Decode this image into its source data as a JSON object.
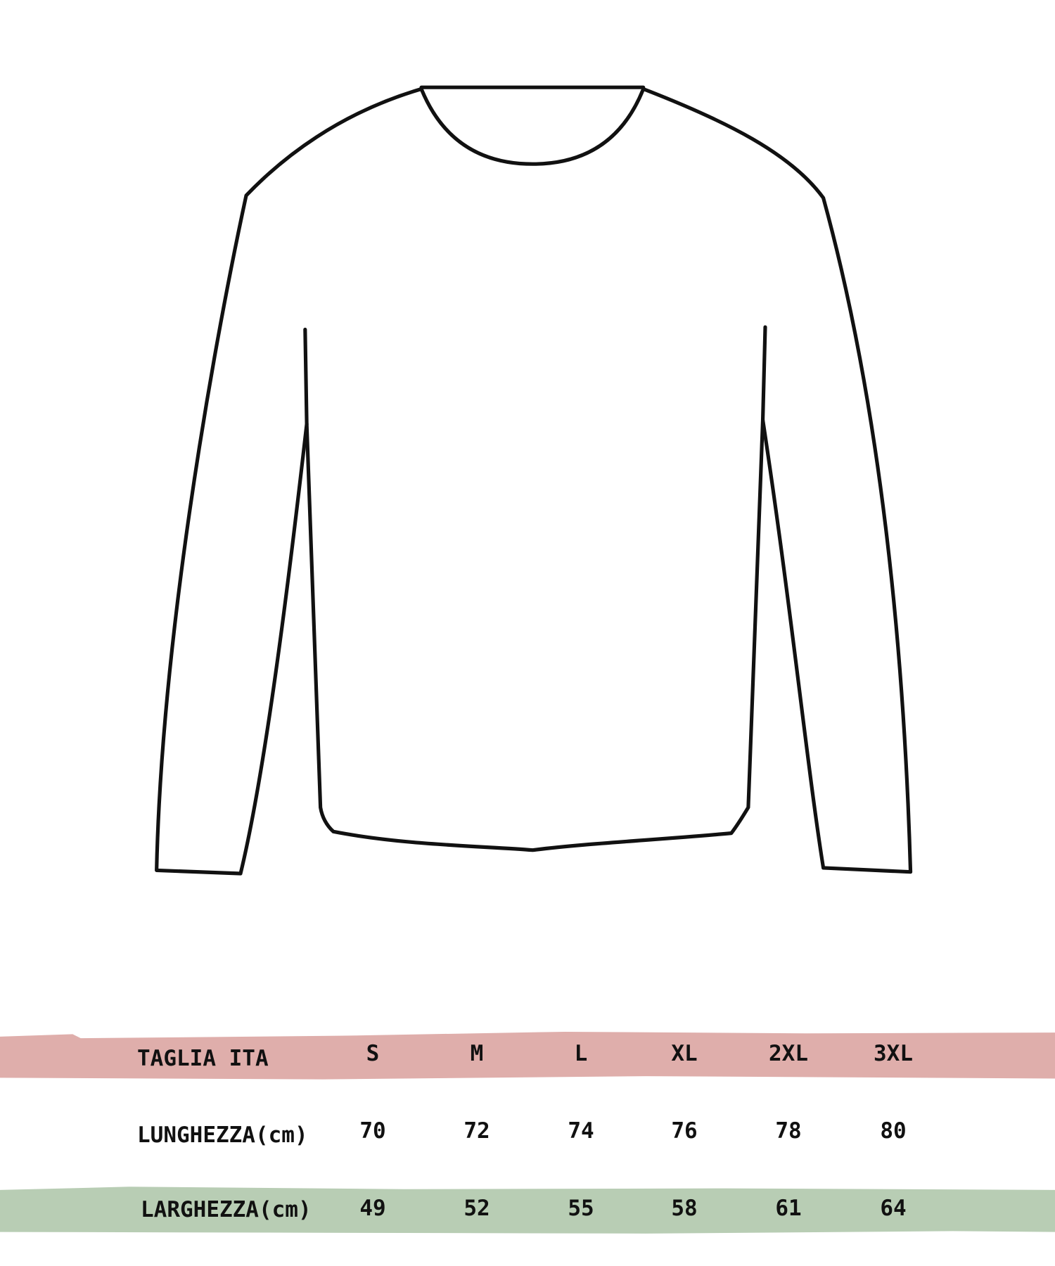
{
  "colors": {
    "header_band": "#dfaeab",
    "width_band": "#b8cdb4",
    "outline": "#111111"
  },
  "illustration": "long-sleeve-sweater-outline",
  "size_table": {
    "header": {
      "label": "TAGLIA ITA",
      "sizes": [
        "S",
        "M",
        "L",
        "XL",
        "2XL",
        "3XL"
      ]
    },
    "rows": [
      {
        "label": "LUNGHEZZA(cm)",
        "values": [
          "70",
          "72",
          "74",
          "76",
          "78",
          "80"
        ]
      },
      {
        "label": "LARGHEZZA(cm)",
        "values": [
          "49",
          "52",
          "55",
          "58",
          "61",
          "64"
        ]
      }
    ]
  }
}
